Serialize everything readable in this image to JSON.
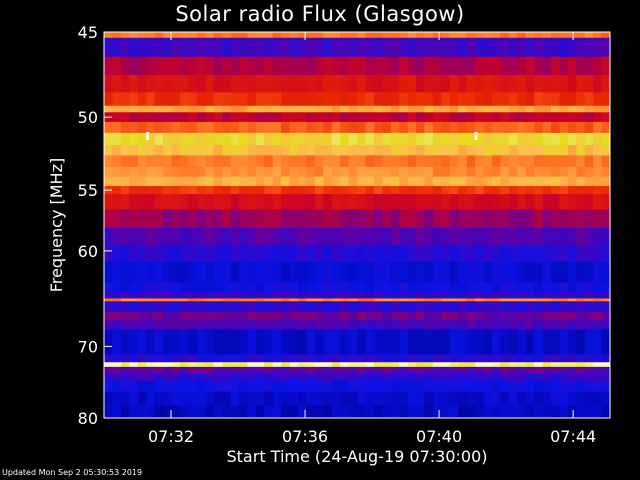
{
  "title": "Solar radio Flux (Glasgow)",
  "footer": "Updated Mon Sep  2 05:30:53 2019",
  "colors": {
    "background": "#000000",
    "axis": "#ffffff",
    "text": "#ffffff"
  },
  "chart_data": {
    "type": "heatmap",
    "title": "Solar radio Flux (Glasgow)",
    "xlabel": "Start Time (24-Aug-19 07:30:00)",
    "ylabel": "Frequency [MHz]",
    "x_unit": "minutes after 07:30:00",
    "xlim": [
      0,
      15.1
    ],
    "ylim": [
      80,
      45.2
    ],
    "x_ticks": [
      {
        "value": 2,
        "label": "07:32"
      },
      {
        "value": 6,
        "label": "07:36"
      },
      {
        "value": 10,
        "label": "07:40"
      },
      {
        "value": 14,
        "label": "07:44"
      }
    ],
    "y_ticks": [
      {
        "value": 45,
        "label": "45"
      },
      {
        "value": 50,
        "label": "50"
      },
      {
        "value": 55,
        "label": "55"
      },
      {
        "value": 60,
        "label": "60"
      },
      {
        "value": 70,
        "label": "70"
      },
      {
        "value": 80,
        "label": "80"
      }
    ],
    "colormap": "blue-red-yellow-white",
    "intensity_scale": "relative 0 (low) to 1 (high)",
    "frequency_bands": [
      {
        "from": 45.2,
        "to": 45.5,
        "intensity": 0.72
      },
      {
        "from": 45.5,
        "to": 46.5,
        "intensity": 0.25
      },
      {
        "from": 46.5,
        "to": 47.5,
        "intensity": 0.42
      },
      {
        "from": 47.5,
        "to": 48.5,
        "intensity": 0.52
      },
      {
        "from": 48.5,
        "to": 49.3,
        "intensity": 0.6
      },
      {
        "from": 49.3,
        "to": 49.7,
        "intensity": 0.8
      },
      {
        "from": 49.7,
        "to": 50.3,
        "intensity": 0.45
      },
      {
        "from": 50.3,
        "to": 51.0,
        "intensity": 0.68
      },
      {
        "from": 51.0,
        "to": 51.8,
        "intensity": 0.9
      },
      {
        "from": 51.8,
        "to": 52.5,
        "intensity": 0.84
      },
      {
        "from": 52.5,
        "to": 53.3,
        "intensity": 0.72
      },
      {
        "from": 53.3,
        "to": 54.0,
        "intensity": 0.76
      },
      {
        "from": 54.0,
        "to": 54.7,
        "intensity": 0.82
      },
      {
        "from": 54.7,
        "to": 55.3,
        "intensity": 0.62
      },
      {
        "from": 55.3,
        "to": 56.5,
        "intensity": 0.5
      },
      {
        "from": 56.5,
        "to": 58.0,
        "intensity": 0.38
      },
      {
        "from": 58.0,
        "to": 59.5,
        "intensity": 0.28
      },
      {
        "from": 59.5,
        "to": 61.0,
        "intensity": 0.2
      },
      {
        "from": 61.0,
        "to": 63.0,
        "intensity": 0.12
      },
      {
        "from": 63.0,
        "to": 64.0,
        "intensity": 0.16
      },
      {
        "from": 64.0,
        "to": 64.6,
        "intensity": 0.24
      },
      {
        "from": 64.6,
        "to": 64.9,
        "intensity": 0.74
      },
      {
        "from": 64.9,
        "to": 66.0,
        "intensity": 0.22
      },
      {
        "from": 66.0,
        "to": 67.0,
        "intensity": 0.32
      },
      {
        "from": 67.0,
        "to": 68.0,
        "intensity": 0.26
      },
      {
        "from": 68.0,
        "to": 71.0,
        "intensity": 0.1
      },
      {
        "from": 71.0,
        "to": 72.0,
        "intensity": 0.2
      },
      {
        "from": 72.0,
        "to": 72.6,
        "intensity": 0.97
      },
      {
        "from": 72.6,
        "to": 73.5,
        "intensity": 0.3
      },
      {
        "from": 73.5,
        "to": 74.5,
        "intensity": 0.22
      },
      {
        "from": 74.5,
        "to": 76.0,
        "intensity": 0.15
      },
      {
        "from": 76.0,
        "to": 78.0,
        "intensity": 0.1
      },
      {
        "from": 78.0,
        "to": 80.0,
        "intensity": 0.08
      }
    ],
    "bursts": [
      {
        "time": 1.3,
        "freq": 51.2
      },
      {
        "time": 11.1,
        "freq": 51.2
      }
    ]
  }
}
